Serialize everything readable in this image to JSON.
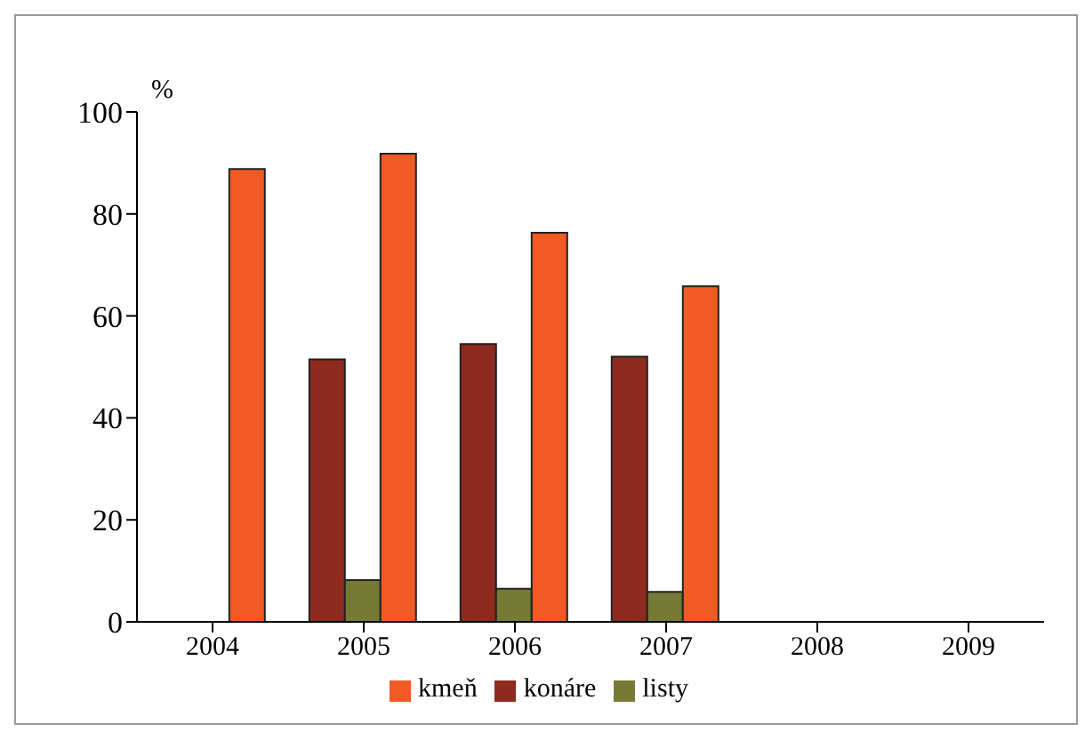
{
  "chart_data": {
    "type": "bar",
    "ylabel": "%",
    "categories": [
      "2004",
      "2005",
      "2006",
      "2007",
      "2008",
      "2009"
    ],
    "series": [
      {
        "name": "konáre",
        "color": "#8e2a1e",
        "values": [
          null,
          51.5,
          54.5,
          52,
          null,
          null
        ]
      },
      {
        "name": "listy",
        "color": "#767a35",
        "values": [
          null,
          8.2,
          6.5,
          5.9,
          null,
          null
        ]
      },
      {
        "name": "kmeň",
        "color": "#f15a22",
        "values": [
          88.8,
          91.8,
          76.3,
          65.8,
          null,
          null
        ]
      }
    ],
    "ylim": [
      0,
      100
    ],
    "yticks": [
      0,
      20,
      40,
      60,
      80,
      100
    ],
    "grid": false,
    "legend": "bottom"
  }
}
